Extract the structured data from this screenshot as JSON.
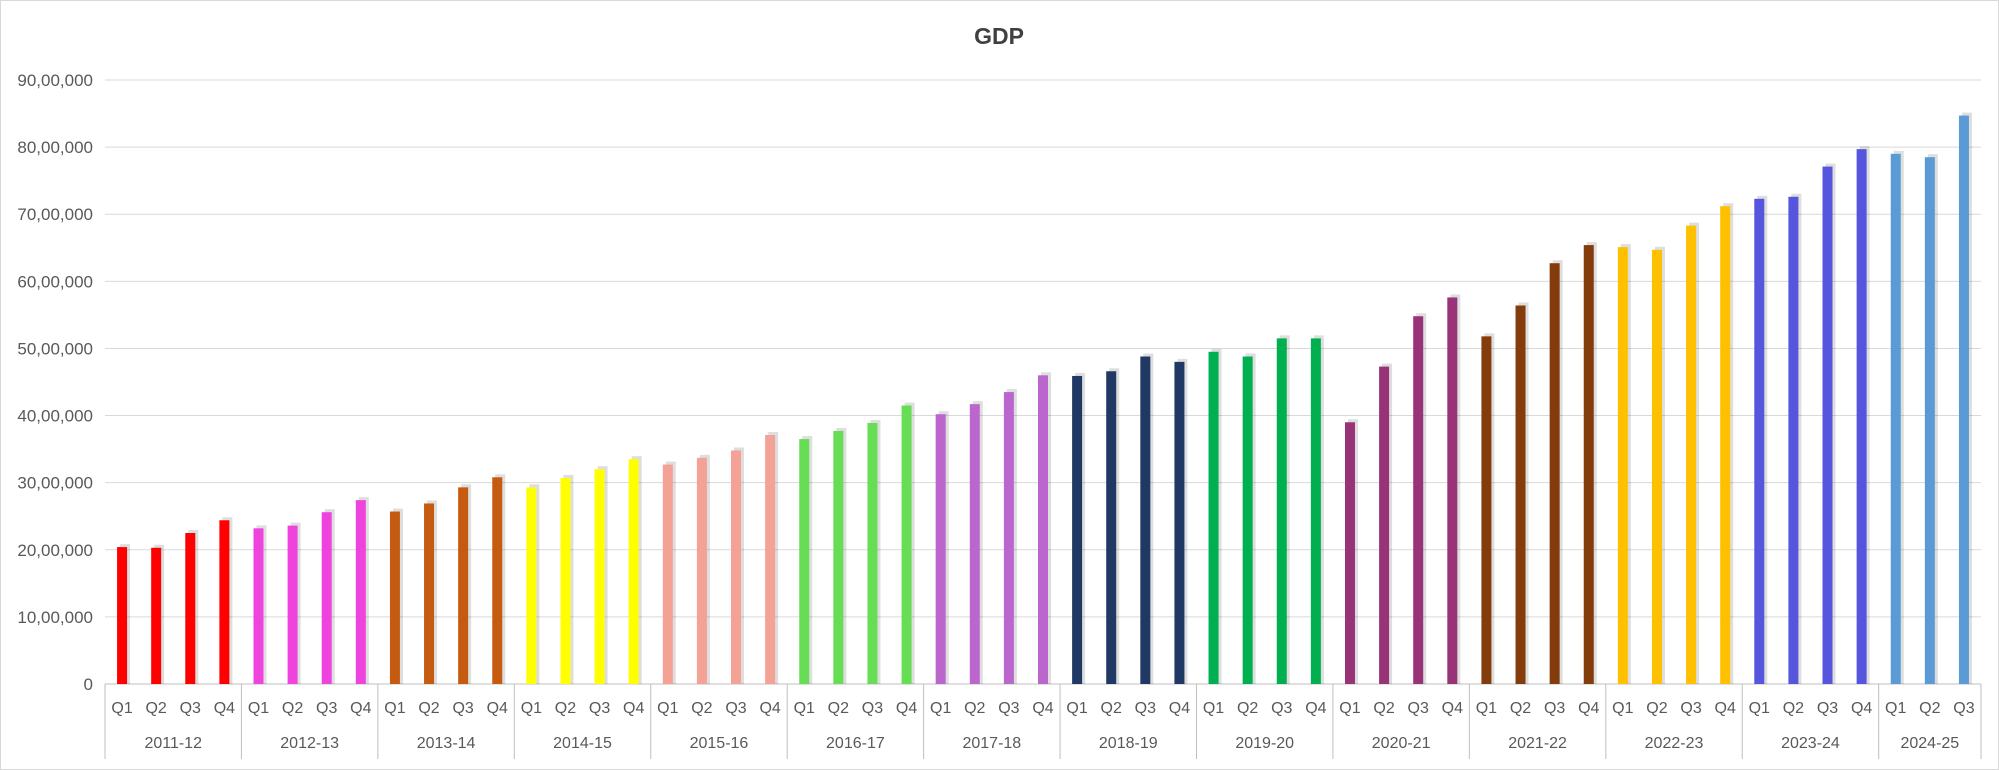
{
  "chart_data": {
    "type": "bar",
    "title": "GDP",
    "xlabel": "",
    "ylabel": "",
    "ylim": [
      0,
      9000000
    ],
    "yticks": [
      {
        "value": 0,
        "label": "0"
      },
      {
        "value": 1000000,
        "label": "10,00,000"
      },
      {
        "value": 2000000,
        "label": "20,00,000"
      },
      {
        "value": 3000000,
        "label": "30,00,000"
      },
      {
        "value": 4000000,
        "label": "40,00,000"
      },
      {
        "value": 5000000,
        "label": "50,00,000"
      },
      {
        "value": 6000000,
        "label": "60,00,000"
      },
      {
        "value": 7000000,
        "label": "70,00,000"
      },
      {
        "value": 8000000,
        "label": "80,00,000"
      },
      {
        "value": 9000000,
        "label": "90,00,000"
      }
    ],
    "grid": true,
    "legend": "none",
    "groups": [
      {
        "label": "2011-12",
        "color": "#ff0000",
        "quarters": [
          "Q1",
          "Q2",
          "Q3",
          "Q4"
        ],
        "values": [
          2040000,
          2030000,
          2250000,
          2440000
        ]
      },
      {
        "label": "2012-13",
        "color": "#ee44dd",
        "quarters": [
          "Q1",
          "Q2",
          "Q3",
          "Q4"
        ],
        "values": [
          2320000,
          2360000,
          2560000,
          2740000
        ]
      },
      {
        "label": "2013-14",
        "color": "#c55a11",
        "quarters": [
          "Q1",
          "Q2",
          "Q3",
          "Q4"
        ],
        "values": [
          2570000,
          2690000,
          2930000,
          3080000
        ]
      },
      {
        "label": "2014-15",
        "color": "#ffff00",
        "quarters": [
          "Q1",
          "Q2",
          "Q3",
          "Q4"
        ],
        "values": [
          2930000,
          3070000,
          3200000,
          3350000
        ]
      },
      {
        "label": "2015-16",
        "color": "#f4a196",
        "quarters": [
          "Q1",
          "Q2",
          "Q3",
          "Q4"
        ],
        "values": [
          3270000,
          3370000,
          3480000,
          3710000
        ]
      },
      {
        "label": "2016-17",
        "color": "#66dd55",
        "quarters": [
          "Q1",
          "Q2",
          "Q3",
          "Q4"
        ],
        "values": [
          3650000,
          3770000,
          3890000,
          4150000
        ]
      },
      {
        "label": "2017-18",
        "color": "#bb66cc",
        "quarters": [
          "Q1",
          "Q2",
          "Q3",
          "Q4"
        ],
        "values": [
          4020000,
          4170000,
          4350000,
          4600000
        ]
      },
      {
        "label": "2018-19",
        "color": "#1f3864",
        "quarters": [
          "Q1",
          "Q2",
          "Q3",
          "Q4"
        ],
        "values": [
          4590000,
          4660000,
          4880000,
          4800000
        ]
      },
      {
        "label": "2019-20",
        "color": "#00b050",
        "quarters": [
          "Q1",
          "Q2",
          "Q3",
          "Q4"
        ],
        "values": [
          4950000,
          4880000,
          5150000,
          5150000
        ]
      },
      {
        "label": "2020-21",
        "color": "#993377",
        "quarters": [
          "Q1",
          "Q2",
          "Q3",
          "Q4"
        ],
        "values": [
          3900000,
          4730000,
          5480000,
          5760000
        ]
      },
      {
        "label": "2021-22",
        "color": "#843c0c",
        "quarters": [
          "Q1",
          "Q2",
          "Q3",
          "Q4"
        ],
        "values": [
          5180000,
          5640000,
          6270000,
          6540000
        ]
      },
      {
        "label": "2022-23",
        "color": "#ffc000",
        "quarters": [
          "Q1",
          "Q2",
          "Q3",
          "Q4"
        ],
        "values": [
          6510000,
          6470000,
          6830000,
          7120000
        ]
      },
      {
        "label": "2023-24",
        "color": "#5555dd",
        "quarters": [
          "Q1",
          "Q2",
          "Q3",
          "Q4"
        ],
        "values": [
          7230000,
          7260000,
          7710000,
          7970000
        ]
      },
      {
        "label": "2024-25",
        "color": "#5b9bd5",
        "quarters": [
          "Q1",
          "Q2",
          "Q3"
        ],
        "values": [
          7900000,
          7850000,
          8470000
        ]
      }
    ]
  }
}
